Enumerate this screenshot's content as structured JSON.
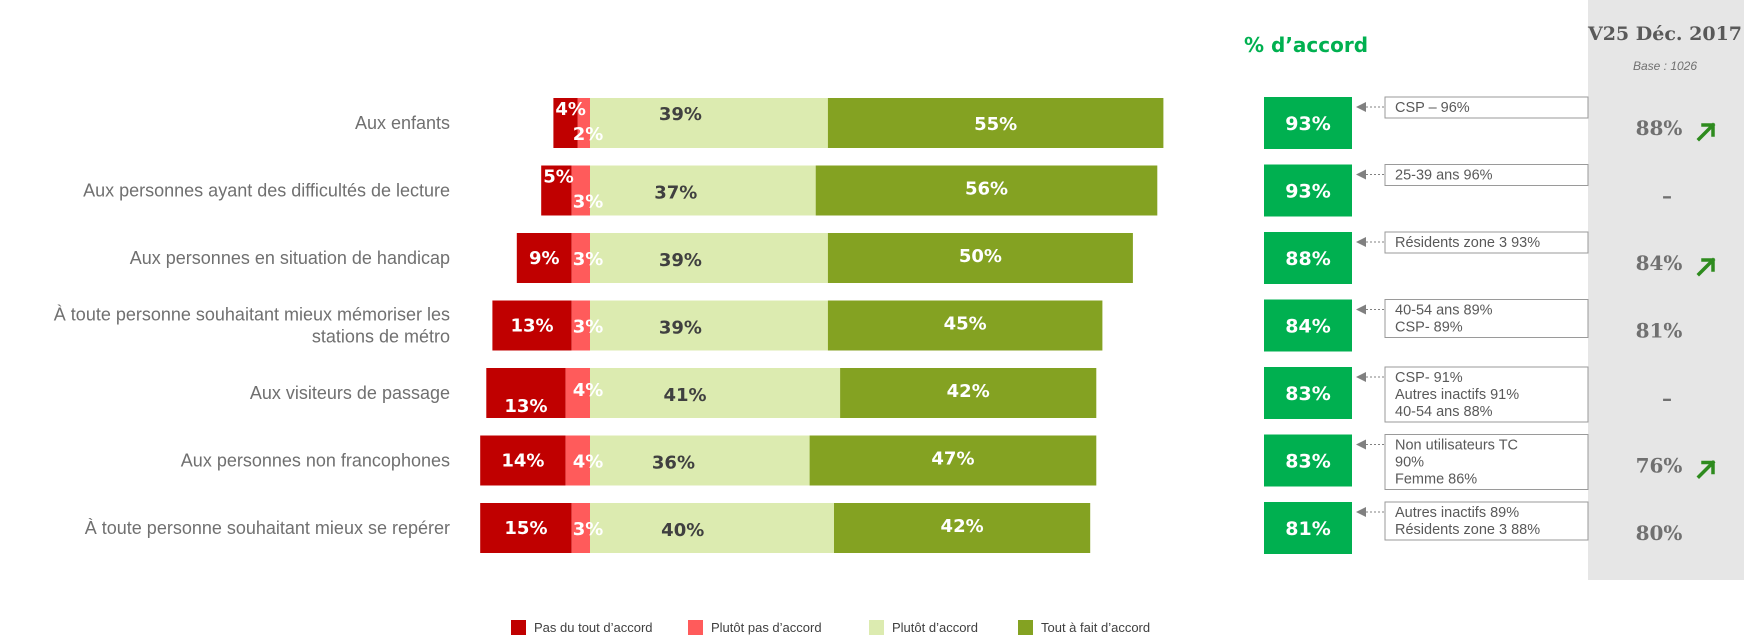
{
  "colors": {
    "pas_du_tout": "#C00000",
    "plutot_pas": "#FF5B5B",
    "plutot": "#DCEBB0",
    "tout_a_fait": "#84A222",
    "accord_box": "#00B050",
    "accord_heading": "#00B050",
    "prev_panel": "#E6E6E6",
    "arrow": "#2E8B1E"
  },
  "header": {
    "accord_title": "% d’accord",
    "prev_title": "V25 Déc. 2017",
    "prev_base": "Base : 1026"
  },
  "chart_data": {
    "type": "bar",
    "orientation": "horizontal-stacked-diverging",
    "categories": [
      [
        "Aux enfants"
      ],
      [
        "Aux personnes ayant des difficultés de lecture"
      ],
      [
        "Aux personnes en situation de handicap"
      ],
      [
        "À toute personne souhaitant mieux mémoriser les",
        "stations de métro"
      ],
      [
        "Aux visiteurs de passage"
      ],
      [
        "Aux personnes non francophones"
      ],
      [
        "À toute personne souhaitant mieux se repérer"
      ]
    ],
    "series": [
      {
        "name": "Pas du tout d’accord",
        "color_key": "pas_du_tout",
        "values": [
          4,
          5,
          9,
          13,
          13,
          14,
          15
        ],
        "labels": [
          "4%",
          "5%",
          "9%",
          "13%",
          "13%",
          "14%",
          "15%"
        ]
      },
      {
        "name": "Plutôt pas d’accord",
        "color_key": "plutot_pas",
        "values": [
          2,
          3,
          3,
          3,
          4,
          4,
          3
        ],
        "labels": [
          "2%",
          "3%",
          "3%",
          "3%",
          "4%",
          "4%",
          "3%"
        ]
      },
      {
        "name": "Plutôt d’accord",
        "color_key": "plutot",
        "values": [
          39,
          37,
          39,
          39,
          41,
          36,
          40
        ],
        "labels": [
          "39%",
          "37%",
          "39%",
          "39%",
          "41%",
          "36%",
          "40%"
        ]
      },
      {
        "name": "Tout à fait d’accord",
        "color_key": "tout_a_fait",
        "values": [
          55,
          56,
          50,
          45,
          42,
          47,
          42
        ],
        "labels": [
          "55%",
          "56%",
          "50%",
          "45%",
          "42%",
          "47%",
          "42%"
        ]
      }
    ],
    "accord": [
      "93%",
      "93%",
      "88%",
      "84%",
      "83%",
      "83%",
      "81%"
    ],
    "notes": [
      [
        "CSP – 96%"
      ],
      [
        "25-39 ans 96%"
      ],
      [
        "Résidents zone 3 93%"
      ],
      [
        "40-54 ans 89%",
        "CSP- 89%"
      ],
      [
        "CSP- 91%",
        "Autres inactifs 91%",
        "40-54 ans 88%"
      ],
      [
        "Non utilisateurs TC",
        "90%",
        "Femme 86%"
      ],
      [
        "Autres inactifs 89%",
        "Résidents zone 3 88%"
      ]
    ],
    "previous": [
      "88%",
      "–",
      "84%",
      "81%",
      "–",
      "76%",
      "80%"
    ],
    "previous_trend_up": [
      true,
      false,
      true,
      false,
      false,
      true,
      false
    ],
    "legend_position": "bottom"
  }
}
